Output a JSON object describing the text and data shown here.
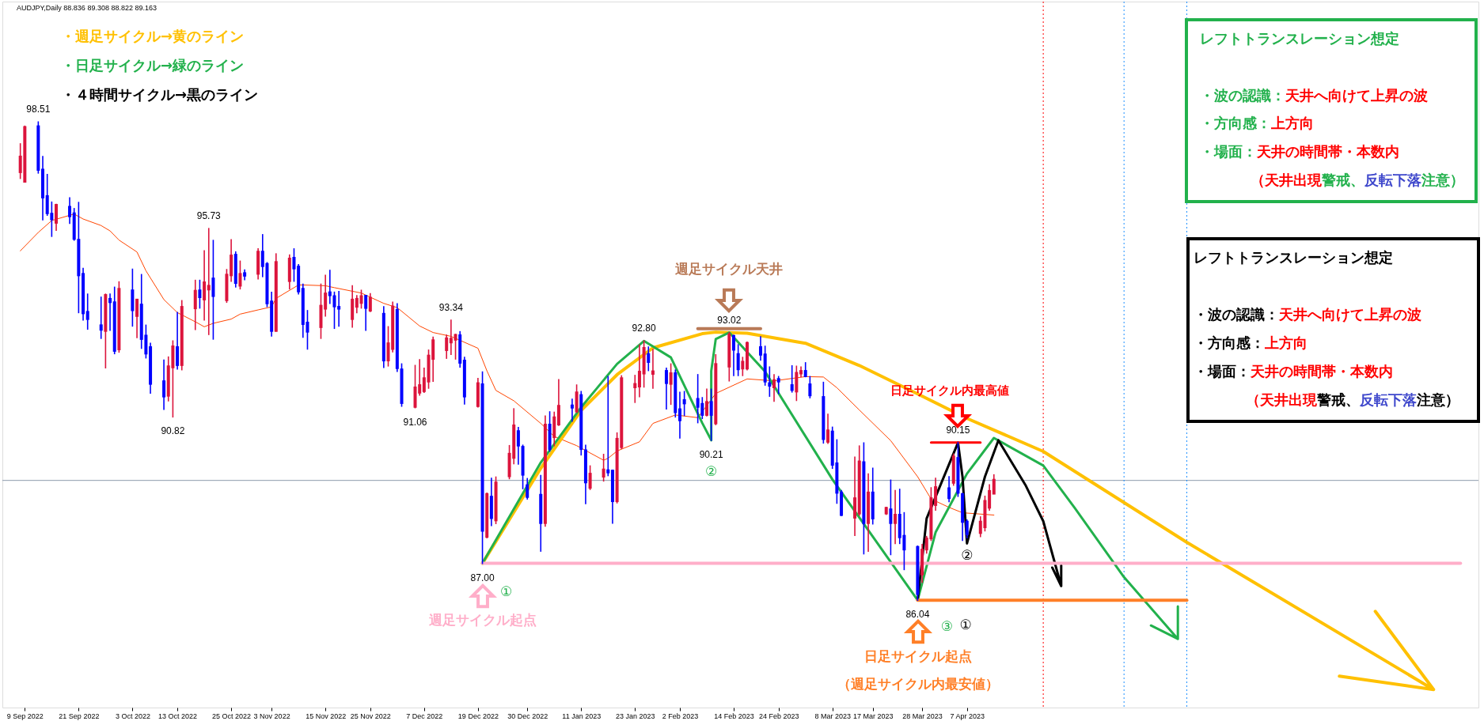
{
  "chart_data": {
    "type": "candlestick",
    "title": "AUDJPY,Daily 88.836 89.308 88.822 89.163",
    "x": [
      "2022-09-08",
      "2022-09-09",
      "2022-09-12",
      "2022-09-13",
      "2022-09-14",
      "2022-09-15",
      "2022-09-16",
      "2022-09-19",
      "2022-09-20",
      "2022-09-21",
      "2022-09-22",
      "2022-09-23",
      "2022-09-26",
      "2022-09-27",
      "2022-09-28",
      "2022-09-29",
      "2022-09-30",
      "2022-10-03",
      "2022-10-04",
      "2022-10-05",
      "2022-10-06",
      "2022-10-07",
      "2022-10-10",
      "2022-10-11",
      "2022-10-12",
      "2022-10-13",
      "2022-10-14",
      "2022-10-17",
      "2022-10-18",
      "2022-10-19",
      "2022-10-20",
      "2022-10-21",
      "2022-10-24",
      "2022-10-25",
      "2022-10-26",
      "2022-10-27",
      "2022-10-28",
      "2022-10-31",
      "2022-11-01",
      "2022-11-02",
      "2022-11-03",
      "2022-11-04",
      "2022-11-07",
      "2022-11-08",
      "2022-11-09",
      "2022-11-10",
      "2022-11-11",
      "2022-11-14",
      "2022-11-15",
      "2022-11-16",
      "2022-11-17",
      "2022-11-18",
      "2022-11-21",
      "2022-11-22",
      "2022-11-23",
      "2022-11-24",
      "2022-11-25",
      "2022-11-28",
      "2022-11-29",
      "2022-11-30",
      "2022-12-01",
      "2022-12-02",
      "2022-12-05",
      "2022-12-06",
      "2022-12-07",
      "2022-12-08",
      "2022-12-09",
      "2022-12-12",
      "2022-12-13",
      "2022-12-14",
      "2022-12-15",
      "2022-12-16",
      "2022-12-19",
      "2022-12-20",
      "2022-12-21",
      "2022-12-22",
      "2022-12-23",
      "2022-12-26",
      "2022-12-27",
      "2022-12-28",
      "2022-12-29",
      "2022-12-30",
      "2023-01-02",
      "2023-01-03",
      "2023-01-04",
      "2023-01-05",
      "2023-01-06",
      "2023-01-09",
      "2023-01-10",
      "2023-01-11",
      "2023-01-12",
      "2023-01-13",
      "2023-01-16",
      "2023-01-17",
      "2023-01-18",
      "2023-01-19",
      "2023-01-20",
      "2023-01-23",
      "2023-01-24",
      "2023-01-25",
      "2023-01-26",
      "2023-01-27",
      "2023-01-30",
      "2023-01-31",
      "2023-02-01",
      "2023-02-02",
      "2023-02-03",
      "2023-02-06",
      "2023-02-07",
      "2023-02-08",
      "2023-02-09",
      "2023-02-10",
      "2023-02-13",
      "2023-02-14",
      "2023-02-15",
      "2023-02-16",
      "2023-02-17",
      "2023-02-20",
      "2023-02-21",
      "2023-02-22",
      "2023-02-23",
      "2023-02-24",
      "2023-02-27",
      "2023-02-28",
      "2023-03-01",
      "2023-03-02",
      "2023-03-03",
      "2023-03-06",
      "2023-03-07",
      "2023-03-08",
      "2023-03-09",
      "2023-03-10",
      "2023-03-13",
      "2023-03-14",
      "2023-03-15",
      "2023-03-16",
      "2023-03-17",
      "2023-03-20",
      "2023-03-21",
      "2023-03-22",
      "2023-03-23",
      "2023-03-24",
      "2023-03-27",
      "2023-03-28",
      "2023-03-29",
      "2023-03-30",
      "2023-03-31",
      "2023-04-03",
      "2023-04-04",
      "2023-04-05",
      "2023-04-06",
      "2023-04-07",
      "2023-04-10",
      "2023-04-11",
      "2023-04-12",
      "2023-04-13"
    ],
    "ohlc": [
      [
        97.22,
        97.94,
        97.04,
        97.59
      ],
      [
        96.97,
        98.4,
        96.95,
        98.36
      ],
      [
        98.38,
        98.51,
        97.18,
        97.28
      ],
      [
        97.25,
        97.61,
        95.96,
        96.56
      ],
      [
        96.56,
        97.14,
        96.08,
        96.15
      ],
      [
        96.1,
        96.42,
        95.53,
        95.99
      ],
      [
        95.9,
        96.36,
        95.69,
        96.33
      ],
      [
        96.28,
        96.53,
        95.87,
        96.07
      ],
      [
        96.11,
        96.25,
        95.43,
        95.48
      ],
      [
        95.42,
        96.41,
        93.54,
        94.53
      ],
      [
        94.53,
        94.69,
        93.35,
        93.54
      ],
      [
        93.54,
        94.02,
        93.11,
        93.39
      ],
      [
        93.19,
        93.94,
        92.87,
        93.11
      ],
      [
        93.08,
        94.02,
        92.1,
        93.98
      ],
      [
        93.88,
        94.02,
        93.08,
        93.83
      ],
      [
        93.79,
        94.2,
        92.47,
        92.56
      ],
      [
        92.6,
        94.34,
        92.51,
        94.14
      ],
      [
        94.1,
        94.67,
        93.19,
        93.62
      ],
      [
        93.47,
        93.88,
        92.89,
        93.86
      ],
      [
        93.73,
        94.53,
        92.61,
        92.87
      ],
      [
        92.92,
        93.21,
        92.36,
        92.49
      ],
      [
        92.62,
        92.74,
        91.44,
        91.7
      ],
      [
        91.73,
        92.3,
        91.02,
        91.37
      ],
      [
        91.39,
        92.38,
        91.24,
        92.12
      ],
      [
        92.13,
        92.8,
        90.82,
        92.64
      ],
      [
        92.62,
        93.54,
        92.07,
        92.19
      ],
      [
        92.19,
        93.85,
        92.05,
        93.67
      ],
      [
        93.67,
        94.38,
        93.1,
        94.09
      ],
      [
        94.1,
        94.38,
        93.66,
        93.96
      ],
      [
        93.9,
        95.15,
        93.35,
        94.31
      ],
      [
        94.16,
        95.73,
        92.97,
        94.22
      ],
      [
        94.41,
        95.42,
        92.85,
        93.99
      ],
      [
        93.88,
        94.66,
        93.81,
        94.51
      ],
      [
        94.53,
        95.44,
        94.36,
        95.01
      ],
      [
        95.03,
        95.12,
        94.21,
        94.33
      ],
      [
        94.26,
        94.88,
        94.16,
        94.53
      ],
      [
        94.55,
        94.65,
        94.4,
        94.52
      ],
      [
        94.57,
        95.2,
        94.42,
        95.11
      ],
      [
        95.11,
        95.57,
        94.48,
        94.77
      ],
      [
        94.79,
        94.84,
        93.7,
        93.8
      ],
      [
        93.81,
        94.07,
        92.93,
        93.08
      ],
      [
        93.08,
        95.07,
        93.06,
        94.84
      ],
      [
        94.38,
        95.04,
        94.16,
        94.93
      ],
      [
        94.95,
        95.2,
        94.36,
        94.71
      ],
      [
        94.72,
        94.79,
        94.03,
        94.11
      ],
      [
        94.14,
        94.28,
        92.9,
        93.26
      ],
      [
        93.26,
        93.59,
        92.59,
        93.06
      ],
      [
        93.18,
        94.28,
        92.87,
        93.7
      ],
      [
        93.66,
        94.51,
        93.45,
        94.02
      ],
      [
        94.05,
        94.64,
        93.78,
        94.01
      ],
      [
        93.95,
        94.07,
        93.13,
        93.72
      ],
      [
        93.67,
        94.09,
        93.19,
        93.66
      ],
      [
        93.39,
        94.24,
        93.16,
        93.86
      ],
      [
        93.71,
        93.98,
        93.54,
        93.88
      ],
      [
        93.81,
        94.12,
        93.66,
        93.95
      ],
      [
        93.96,
        93.98,
        93.08,
        93.68
      ],
      [
        93.61,
        94.03,
        93.57,
        93.91
      ],
      [
        93.49,
        93.69,
        92.11,
        92.31
      ],
      [
        92.31,
        93.17,
        92.15,
        92.72
      ],
      [
        92.61,
        93.81,
        92.52,
        93.68
      ],
      [
        93.59,
        93.77,
        92.01,
        92.11
      ],
      [
        92.04,
        92.2,
        91.1,
        91.2
      ],
      [
        91.1,
        92.16,
        91.06,
        91.57
      ],
      [
        91.47,
        92.31,
        91.39,
        91.63
      ],
      [
        91.51,
        92.09,
        91.46,
        91.81
      ],
      [
        91.76,
        92.56,
        91.57,
        92.4
      ],
      [
        92.35,
        92.9,
        91.75,
        92.8
      ],
      [
        92.58,
        92.95,
        92.35,
        92.85
      ],
      [
        92.78,
        93.34,
        92.45,
        92.84
      ],
      [
        92.85,
        92.97,
        92.33,
        92.94
      ],
      [
        92.93,
        93.04,
        92.12,
        92.25
      ],
      [
        92.27,
        92.37,
        91.16,
        91.37
      ],
      [
        91.12,
        91.82,
        91.08,
        91.68
      ],
      [
        91.65,
        91.99,
        87.0,
        87.87
      ],
      [
        87.71,
        88.83,
        87.67,
        88.79
      ],
      [
        88.72,
        89.22,
        87.99,
        88.2
      ],
      [
        88.14,
        89.25,
        88.04,
        89.09
      ],
      [
        89.29,
        90.07,
        89.21,
        89.84
      ],
      [
        89.77,
        91.03,
        89.6,
        90.58
      ],
      [
        90.43,
        90.54,
        89.59,
        90.09
      ],
      [
        90.02,
        90.08,
        88.95,
        89.33
      ],
      [
        89.02,
        89.21,
        88.68,
        88.75
      ],
      [
        88.77,
        89.29,
        87.32,
        88.07
      ],
      [
        88.07,
        90.84,
        87.97,
        90.6
      ],
      [
        90.6,
        90.95,
        89.93,
        90.0
      ],
      [
        90.31,
        90.94,
        90.07,
        90.79
      ],
      [
        90.64,
        91.79,
        90.6,
        91.09
      ],
      [
        91.1,
        91.28,
        90.71,
        91.08
      ],
      [
        90.98,
        91.65,
        90.94,
        91.44
      ],
      [
        91.37,
        91.48,
        89.83,
        90.0
      ],
      [
        89.93,
        90.08,
        88.56,
        89.13
      ],
      [
        88.99,
        89.54,
        88.93,
        89.32
      ],
      [
        89.28,
        89.84,
        89.15,
        89.43
      ],
      [
        89.41,
        91.87,
        89.29,
        89.39
      ],
      [
        89.4,
        89.43,
        88.05,
        88.64
      ],
      [
        88.64,
        90.4,
        88.58,
        90.23
      ],
      [
        90.05,
        91.89,
        90.0,
        91.81
      ],
      [
        91.61,
        91.9,
        91.2,
        91.66
      ],
      [
        91.63,
        92.69,
        91.35,
        91.98
      ],
      [
        91.97,
        92.8,
        91.6,
        92.6
      ],
      [
        92.44,
        92.64,
        92.03,
        92.27
      ],
      [
        91.96,
        92.58,
        91.57,
        91.99
      ],
      [
        92.0,
        92.09,
        91.03,
        91.72
      ],
      [
        91.7,
        92.2,
        91.15,
        91.94
      ],
      [
        91.94,
        92.04,
        90.82,
        90.96
      ],
      [
        91.0,
        91.46,
        90.27,
        90.75
      ],
      [
        91.24,
        91.48,
        90.86,
        91.19
      ],
      [
        91.27,
        91.92,
        90.67,
        91.1
      ],
      [
        91.14,
        91.32,
        90.78,
        90.89
      ],
      [
        90.89,
        91.54,
        90.85,
        91.19
      ],
      [
        91.19,
        91.54,
        90.21,
        90.89
      ],
      [
        90.67,
        92.44,
        90.62,
        92.18
      ],
      [
        92.15,
        93.02,
        91.76,
        92.95
      ],
      [
        92.91,
        92.95,
        91.9,
        92.59
      ],
      [
        92.44,
        92.7,
        91.9,
        92.08
      ],
      [
        92.1,
        92.37,
        91.9,
        92.24
      ],
      [
        92.1,
        92.77,
        92.05,
        92.73
      ],
      [
        92.62,
        92.91,
        92.3,
        92.46
      ],
      [
        92.43,
        92.66,
        91.65,
        91.76
      ],
      [
        91.68,
        92.12,
        91.36,
        91.65
      ],
      [
        91.61,
        91.92,
        91.23,
        91.76
      ],
      [
        91.79,
        91.87,
        91.43,
        91.76
      ],
      [
        91.63,
        92.15,
        91.47,
        91.54
      ],
      [
        91.5,
        92.14,
        91.25,
        91.95
      ],
      [
        91.97,
        92.12,
        91.87,
        92.0
      ],
      [
        92.0,
        92.23,
        91.87,
        91.9
      ],
      [
        91.65,
        91.87,
        91.32,
        91.4
      ],
      [
        91.32,
        91.72,
        90.14,
        90.26
      ],
      [
        90.19,
        90.89,
        90.13,
        90.45
      ],
      [
        90.42,
        90.55,
        89.48,
        89.59
      ],
      [
        89.59,
        90.22,
        88.57,
        88.86
      ],
      [
        88.83,
        88.9,
        88.25,
        88.28
      ],
      [
        88.21,
        89.77,
        87.73,
        88.68
      ],
      [
        88.32,
        90.06,
        88.25,
        89.64
      ],
      [
        89.62,
        90.14,
        87.25,
        88.07
      ],
      [
        88.07,
        89.33,
        87.32,
        88.83
      ],
      [
        88.83,
        89.48,
        88.03,
        88.19
      ],
      [
        88.32,
        88.46,
        88.28,
        88.43
      ],
      [
        88.39,
        89.17,
        87.23,
        88.07
      ],
      [
        88.07,
        88.9,
        87.52,
        88.25
      ],
      [
        88.25,
        88.93,
        87.52,
        87.7
      ],
      [
        87.7,
        88.32,
        86.84,
        87.38
      ],
      [
        87.41,
        87.45,
        86.04,
        86.22
      ],
      [
        86.73,
        87.49,
        86.51,
        87.34
      ],
      [
        87.38,
        87.7,
        87.27,
        87.63
      ],
      [
        87.67,
        88.97,
        87.6,
        88.68
      ],
      [
        88.54,
        89.22,
        88.39,
        88.97
      ],
      [
        88.94,
        89.26,
        88.61,
        88.72
      ],
      [
        89.12,
        89.85,
        89.04,
        89.77
      ],
      [
        89.73,
        90.15,
        88.75,
        88.86
      ],
      [
        88.79,
        88.82,
        87.6,
        88.1
      ],
      [
        88.07,
        88.13,
        87.67,
        87.78
      ],
      [
        87.81,
        88.21,
        87.7,
        88.07
      ],
      [
        87.96,
        88.75,
        87.85,
        88.61
      ],
      [
        88.47,
        89.05,
        88.39,
        88.87
      ],
      [
        88.836,
        89.308,
        88.822,
        89.163
      ]
    ],
    "colors": [
      "#dc143c",
      "#dc143c",
      "#0000ff",
      "#0000ff",
      "#0000ff",
      "#0000ff",
      "#dc143c",
      "#0000ff",
      "#0000ff",
      "#0000ff",
      "#0000ff",
      "#0000ff",
      "#0000ff",
      "#dc143c",
      "#0000ff",
      "#0000ff",
      "#dc143c",
      "#0000ff",
      "#dc143c",
      "#0000ff",
      "#0000ff",
      "#0000ff",
      "#0000ff",
      "#dc143c",
      "#dc143c",
      "#0000ff",
      "#dc143c",
      "#dc143c",
      "#0000ff",
      "#dc143c",
      "#dc143c",
      "#0000ff",
      "#dc143c",
      "#dc143c",
      "#0000ff",
      "#dc143c",
      "#0000ff",
      "#dc143c",
      "#0000ff",
      "#0000ff",
      "#0000ff",
      "#dc143c",
      "#dc143c",
      "#0000ff",
      "#0000ff",
      "#0000ff",
      "#0000ff",
      "#dc143c",
      "#dc143c",
      "#0000ff",
      "#0000ff",
      "#0000ff",
      "#dc143c",
      "#dc143c",
      "#dc143c",
      "#0000ff",
      "#dc143c",
      "#0000ff",
      "#dc143c",
      "#dc143c",
      "#0000ff",
      "#0000ff",
      "#dc143c",
      "#dc143c",
      "#dc143c",
      "#dc143c",
      "#dc143c",
      "#dc143c",
      "#dc143c",
      "#dc143c",
      "#0000ff",
      "#0000ff",
      "#dc143c",
      "#0000ff",
      "#dc143c",
      "#0000ff",
      "#dc143c",
      "#dc143c",
      "#dc143c",
      "#0000ff",
      "#0000ff",
      "#0000ff",
      "#0000ff",
      "#dc143c",
      "#0000ff",
      "#dc143c",
      "#dc143c",
      "#0000ff",
      "#dc143c",
      "#0000ff",
      "#0000ff",
      "#dc143c",
      "#dc143c",
      "#0000ff",
      "#0000ff",
      "#dc143c",
      "#dc143c",
      "#dc143c",
      "#dc143c",
      "#dc143c",
      "#0000ff",
      "#dc143c",
      "#0000ff",
      "#dc143c",
      "#0000ff",
      "#0000ff",
      "#0000ff",
      "#0000ff",
      "#0000ff",
      "#dc143c",
      "#0000ff",
      "#dc143c",
      "#dc143c",
      "#0000ff",
      "#0000ff",
      "#dc143c",
      "#dc143c",
      "#0000ff",
      "#0000ff",
      "#0000ff",
      "#dc143c",
      "#0000ff",
      "#0000ff",
      "#dc143c",
      "#dc143c",
      "#0000ff",
      "#0000ff",
      "#0000ff",
      "#dc143c",
      "#0000ff",
      "#0000ff",
      "#0000ff",
      "#dc143c",
      "#dc143c",
      "#0000ff",
      "#dc143c",
      "#0000ff",
      "#dc143c",
      "#0000ff",
      "#dc143c",
      "#0000ff",
      "#0000ff",
      "#0000ff",
      "#dc143c",
      "#dc143c",
      "#dc143c",
      "#dc143c",
      "#0000ff",
      "#dc143c",
      "#0000ff",
      "#0000ff",
      "#0000ff",
      "#dc143c",
      "#dc143c",
      "#dc143c",
      "#dc143c"
    ],
    "series": [
      {
        "type": "line",
        "color": "#ff4500",
        "x": [
          "2022-09-08",
          "2022-09-12",
          "2022-09-15",
          "2022-09-20",
          "2022-09-22",
          "2022-09-26",
          "2022-09-28",
          "2022-09-30",
          "2022-10-04",
          "2022-10-06",
          "2022-10-10",
          "2022-10-13",
          "2022-10-17",
          "2022-10-19",
          "2022-10-21",
          "2022-10-25",
          "2022-10-27",
          "2022-10-31",
          "2022-11-03",
          "2022-11-04",
          "2022-11-09",
          "2022-11-10",
          "2022-11-15",
          "2022-11-17",
          "2022-11-23",
          "2022-11-28",
          "2022-12-01",
          "2022-12-06",
          "2022-12-09",
          "2022-12-13",
          "2022-12-19",
          "2022-12-21",
          "2022-12-23",
          "2022-12-27",
          "2023-01-02",
          "2023-01-05",
          "2023-01-10",
          "2023-01-16",
          "2023-01-17",
          "2023-01-19",
          "2023-01-24",
          "2023-01-27",
          "2023-02-01",
          "2023-02-06",
          "2023-02-10",
          "2023-02-17",
          "2023-02-23",
          "2023-03-02",
          "2023-03-06",
          "2023-03-09",
          "2023-03-14",
          "2023-03-21",
          "2023-03-27",
          "2023-03-30",
          "2023-04-03",
          "2023-04-06",
          "2023-04-13"
        ],
        "values": [
          95.15,
          95.63,
          95.94,
          96.11,
          95.98,
          95.81,
          95.67,
          95.43,
          95.12,
          94.63,
          93.88,
          93.54,
          93.3,
          93.17,
          93.26,
          93.37,
          93.5,
          93.61,
          93.69,
          93.91,
          94.26,
          94.26,
          94.24,
          94.19,
          94.05,
          93.78,
          93.67,
          93.19,
          93.02,
          92.92,
          92.61,
          92.02,
          91.51,
          91.24,
          90.65,
          90.31,
          90.07,
          89.69,
          89.74,
          89.93,
          90.17,
          90.65,
          90.87,
          90.8,
          91.43,
          91.81,
          91.76,
          91.87,
          91.86,
          91.58,
          91.0,
          90.2,
          89.26,
          88.68,
          88.46,
          88.32,
          88.26
        ]
      },
      {
        "type": "line",
        "name": "・週足サイクル→黄のライン",
        "color": "#ffc000",
        "x": [
          "2022-12-20",
          "2023-01-02",
          "2023-01-11",
          "2023-01-19",
          "2023-01-27",
          "2023-02-07",
          "2023-02-10",
          "2023-02-17",
          "2023-03-02",
          "2023-03-14",
          "2023-03-27",
          "2023-04-07",
          "2023-04-24",
          "2023-05-26",
          "2023-07-20",
          "2023-06-29",
          "2023-07-20",
          "2023-07-07"
        ],
        "values": [
          87.0,
          89.48,
          90.99,
          91.92,
          92.62,
          92.99,
          93.03,
          93.0,
          92.74,
          92.16,
          91.42,
          90.78,
          89.92,
          87.55,
          83.71,
          84.06,
          83.71,
          85.75
        ]
      },
      {
        "type": "line",
        "name": "・日足サイクル→緑のライン",
        "color": "#22b14c",
        "x": [
          "2022-12-20",
          "2023-01-02",
          "2023-01-11",
          "2023-01-19",
          "2023-01-25",
          "2023-01-31",
          "2023-02-07",
          "2023-02-09",
          "2023-02-09",
          "2023-02-10",
          "2023-02-13",
          "2023-02-21",
          "2023-03-08",
          "2023-03-27",
          "2023-03-31",
          "2023-04-07",
          "2023-04-13",
          "2023-04-24",
          "2023-05-01",
          "2023-05-12",
          "2023-05-24",
          "2023-05-18",
          "2023-05-24",
          "2023-05-24"
        ],
        "values": [
          87.0,
          89.63,
          91.07,
          92.2,
          92.8,
          92.37,
          90.66,
          90.21,
          92.02,
          92.85,
          93.02,
          92.0,
          89.19,
          86.04,
          87.81,
          89.34,
          90.27,
          89.55,
          88.45,
          86.64,
          85.03,
          85.38,
          85.03,
          85.88
        ]
      },
      {
        "type": "line",
        "name": "・４時間サイクル→黒のライン",
        "color": "#000000",
        "x": [
          "2023-03-27",
          "2023-03-29",
          "2023-04-05",
          "2023-04-06",
          "2023-04-07",
          "2023-04-11",
          "2023-04-14",
          "2023-04-20",
          "2023-04-24",
          "2023-04-28",
          "2023-04-26",
          "2023-04-28",
          "2023-04-28"
        ],
        "values": [
          86.04,
          88.17,
          90.15,
          89.26,
          87.52,
          89.26,
          90.21,
          89.05,
          88.1,
          86.41,
          86.89,
          86.41,
          86.95
        ]
      },
      {
        "type": "line",
        "color": "#ffaec9",
        "x": [
          "2022-12-20",
          "2023-07-26"
        ],
        "values": [
          87.0,
          87.0
        ]
      },
      {
        "type": "line",
        "color": "#ff7f27",
        "x": [
          "2023-03-27",
          "2023-05-26"
        ],
        "values": [
          86.04,
          86.04
        ]
      },
      {
        "type": "line",
        "color": "#b97a57",
        "x": [
          "2023-02-06",
          "2023-02-20"
        ],
        "values": [
          93.12,
          93.12
        ]
      },
      {
        "type": "line",
        "color": "#ff0000",
        "x": [
          "2023-03-30",
          "2023-04-10"
        ],
        "values": [
          90.15,
          90.15
        ]
      }
    ],
    "ref_lines": [
      {
        "axis": "y",
        "value": 89.163,
        "color": "#8c9bab"
      },
      {
        "axis": "x",
        "value": "2023-04-24",
        "color": "#ff0000",
        "line_style": "dotted"
      },
      {
        "axis": "x",
        "value": "2023-05-12",
        "color": "#1e90ff",
        "line_style": "dotted"
      },
      {
        "axis": "x",
        "value": "2023-05-26",
        "color": "#1e90ff",
        "line_style": "dotted"
      }
    ],
    "annotations": [
      {
        "text": "98.51",
        "x": "2022-09-12",
        "y": 98.51
      },
      {
        "text": "95.73",
        "x": "2022-10-20",
        "y": 95.73
      },
      {
        "text": "90.82",
        "x": "2022-10-12",
        "y": 90.82
      },
      {
        "text": "93.34",
        "x": "2022-12-13",
        "y": 93.34
      },
      {
        "text": "91.06",
        "x": "2022-12-05",
        "y": 91.06
      },
      {
        "text": "87.00",
        "x": "2022-12-20",
        "y": 87.0
      },
      {
        "text": "92.80",
        "x": "2023-01-25",
        "y": 92.8
      },
      {
        "text": "93.02",
        "x": "2023-02-13",
        "y": 93.02
      },
      {
        "text": "90.21",
        "x": "2023-02-09",
        "y": 90.21
      },
      {
        "text": "90.15",
        "x": "2023-04-05",
        "y": 90.15
      },
      {
        "text": "86.04",
        "x": "2023-03-27",
        "y": 86.04
      },
      {
        "text": "①",
        "x": "2022-12-20",
        "y": 87.0
      },
      {
        "text": "②",
        "x": "2023-02-09",
        "y": 90.21
      },
      {
        "text": "③",
        "x": "2023-03-27",
        "y": 86.04
      },
      {
        "text": "②",
        "x": "2023-04-07",
        "y": 87.52
      },
      "週足サイクル天井",
      "日足サイクル内最高値",
      "週足サイクル起点",
      "日足サイクル起点",
      "（週足サイクル内最安値）",
      "①",
      "レフトトランスレーション想定",
      "・波の認識：",
      "天井へ向けて上昇の波",
      "・方向感：",
      "上方向",
      "・場面：",
      "天井の時間帯・本数内",
      "（天井出現",
      "警戒、",
      "反転下落",
      "注意）",
      "レフトトランスレーション想定",
      "・波の認識：",
      "天井へ向けて上昇の波",
      "・方向感：",
      "上方向",
      "・場面：",
      "天井の時間帯・本数内",
      "（天井出現",
      "警戒、",
      "反転下落",
      "注意）"
    ],
    "xlim": [
      "2022-09-04",
      "2023-07-30"
    ],
    "ylim": [
      83.24,
      101.65
    ],
    "xticks": [
      {
        "value": "2022-09-09",
        "label": "9 Sep 2022"
      },
      {
        "value": "2022-09-21",
        "label": "21 Sep 2022"
      },
      {
        "value": "2022-10-03",
        "label": "3 Oct 2022"
      },
      {
        "value": "2022-10-13",
        "label": "13 Oct 2022"
      },
      {
        "value": "2022-10-25",
        "label": "25 Oct 2022"
      },
      {
        "value": "2022-11-03",
        "label": "3 Nov 2022"
      },
      {
        "value": "2022-11-15",
        "label": "15 Nov 2022"
      },
      {
        "value": "2022-11-25",
        "label": "25 Nov 2022"
      },
      {
        "value": "2022-12-07",
        "label": "7 Dec 2022"
      },
      {
        "value": "2022-12-19",
        "label": "19 Dec 2022"
      },
      {
        "value": "2022-12-30",
        "label": "30 Dec 2022"
      },
      {
        "value": "2023-01-11",
        "label": "11 Jan 2023"
      },
      {
        "value": "2023-01-23",
        "label": "23 Jan 2023"
      },
      {
        "value": "2023-02-02",
        "label": "2 Feb 2023"
      },
      {
        "value": "2023-02-14",
        "label": "14 Feb 2023"
      },
      {
        "value": "2023-02-24",
        "label": "24 Feb 2023"
      },
      {
        "value": "2023-03-08",
        "label": "8 Mar 2023"
      },
      {
        "value": "2023-03-17",
        "label": "17 Mar 2023"
      },
      {
        "value": "2023-03-28",
        "label": "28 Mar 2023"
      },
      {
        "value": "2023-04-07",
        "label": "7 Apr 2023"
      }
    ],
    "tick_labels": "x"
  }
}
